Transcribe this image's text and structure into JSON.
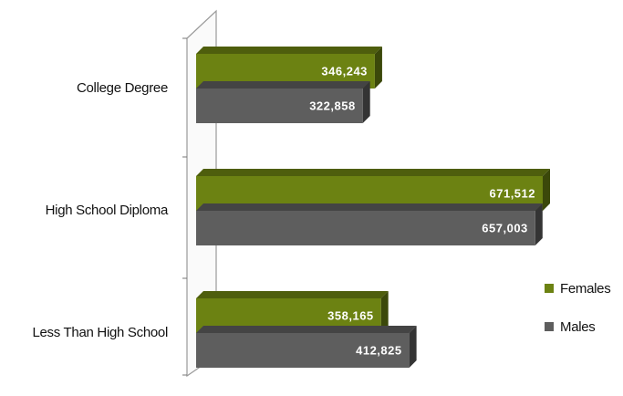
{
  "chart_data": {
    "type": "bar3d_horizontal",
    "categories": [
      "College Degree",
      "High School Diploma",
      "Less Than High School"
    ],
    "series": [
      {
        "name": "Females",
        "color": "#6c8212",
        "values": [
          346243,
          671512,
          358165
        ],
        "value_labels": [
          "346,243",
          "671,512",
          "358,165"
        ]
      },
      {
        "name": "Males",
        "color": "#5e5e5e",
        "values": [
          322858,
          657003,
          412825
        ],
        "value_labels": [
          "322,858",
          "657,003",
          "412,825"
        ]
      }
    ],
    "legend": "right"
  }
}
